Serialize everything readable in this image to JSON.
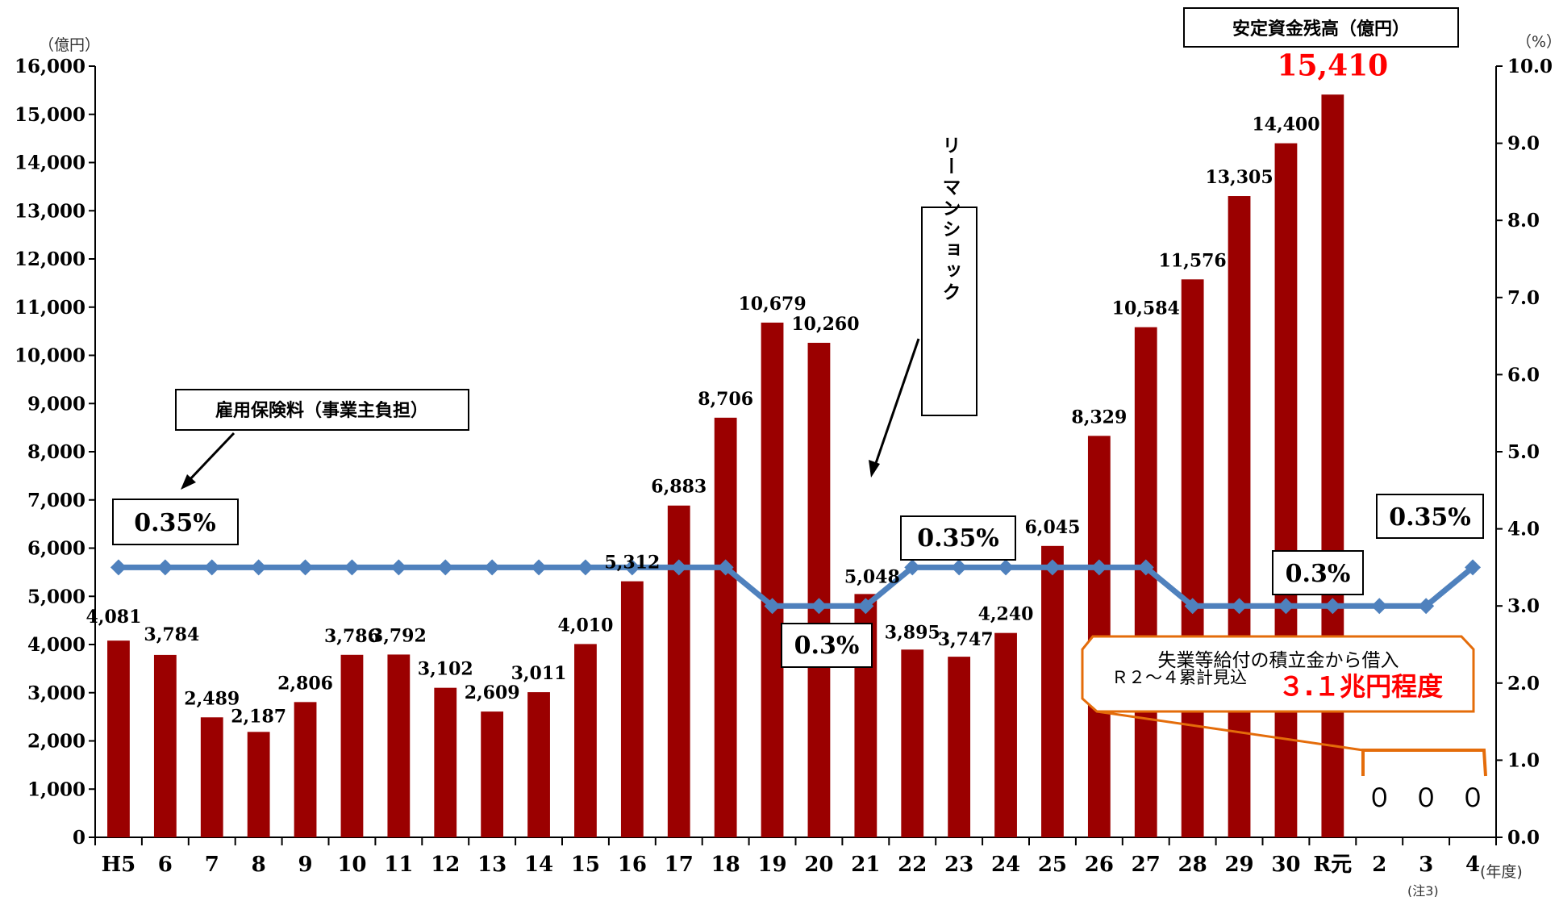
{
  "chart_data": {
    "type": "bar",
    "categories": [
      "H5",
      "6",
      "7",
      "8",
      "9",
      "10",
      "11",
      "12",
      "13",
      "14",
      "15",
      "16",
      "17",
      "18",
      "19",
      "20",
      "21",
      "22",
      "23",
      "24",
      "25",
      "26",
      "27",
      "28",
      "29",
      "30",
      "R元",
      "2",
      "3",
      "4"
    ],
    "series": [
      {
        "name": "安定資金残高（億円）",
        "type": "bar",
        "axis": "left",
        "values": [
          4081,
          3784,
          2489,
          2187,
          2806,
          3786,
          3792,
          3102,
          2609,
          3011,
          4010,
          5312,
          6883,
          8706,
          10679,
          10260,
          5048,
          3895,
          3747,
          4240,
          6045,
          8329,
          10584,
          11576,
          13305,
          14400,
          15410,
          0,
          0,
          0
        ],
        "labels": [
          "4,081",
          "3,784",
          "2,489",
          "2,187",
          "2,806",
          "3,786",
          "3,792",
          "3,102",
          "2,609",
          "3,011",
          "4,010",
          "5,312",
          "6,883",
          "8,706",
          "10,679",
          "10,260",
          "5,048",
          "3,895",
          "3,747",
          "4,240",
          "6,045",
          "8,329",
          "10,584",
          "11,576",
          "13,305",
          "14,400",
          "15,410",
          "０",
          "０",
          "０"
        ]
      },
      {
        "name": "雇用保険料（事業主負担）",
        "type": "line",
        "axis": "right",
        "values": [
          3.5,
          3.5,
          3.5,
          3.5,
          3.5,
          3.5,
          3.5,
          3.5,
          3.5,
          3.5,
          3.5,
          3.5,
          3.5,
          3.5,
          3.0,
          3.0,
          3.0,
          3.5,
          3.5,
          3.5,
          3.5,
          3.5,
          3.5,
          3.0,
          3.0,
          3.0,
          3.0,
          3.0,
          3.0,
          3.5
        ]
      }
    ],
    "y_left": {
      "min": 0,
      "max": 16000,
      "step": 1000,
      "unit": "（億円）",
      "ticks": [
        "0",
        "1,000",
        "2,000",
        "3,000",
        "4,000",
        "5,000",
        "6,000",
        "7,000",
        "8,000",
        "9,000",
        "10,000",
        "11,000",
        "12,000",
        "13,000",
        "14,000",
        "15,000",
        "16,000"
      ]
    },
    "y_right": {
      "min": 0,
      "max": 10,
      "step": 1,
      "unit": "（%）",
      "ticks": [
        "0.0",
        "1.0",
        "2.0",
        "3.0",
        "4.0",
        "5.0",
        "6.0",
        "7.0",
        "8.0",
        "9.0",
        "10.0"
      ]
    },
    "x_unit": "(年度)",
    "x_note": "(注3)",
    "legend_bar": "安定資金残高（億円）",
    "legend_line": "雇用保険料（事業主負担）",
    "event_label": "リーマンショック",
    "rate_labels": [
      "0.35%",
      "0.3%",
      "0.35%",
      "0.3%",
      "0.35%"
    ],
    "borrow_line1": "失業等給付の積立金から借入",
    "borrow_line2": "Ｒ２～４累計見込",
    "borrow_amount": "３.１兆円程度",
    "colors": {
      "bar": "#9b0000",
      "line": "#4f81bd",
      "highlight": "#ff0000",
      "callout": "#e46c0a"
    }
  }
}
